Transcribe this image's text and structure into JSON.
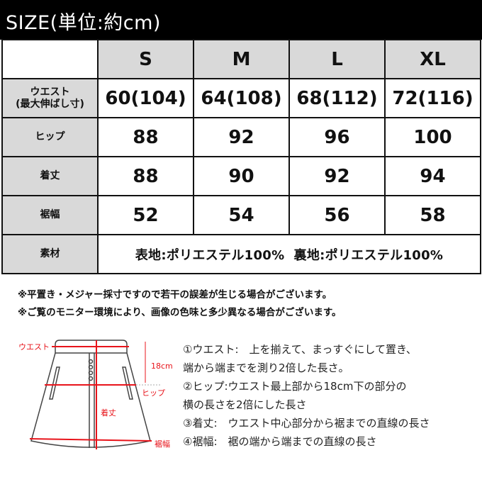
{
  "title": "SIZE(単位:約cm)",
  "table": {
    "sizes": [
      "S",
      "M",
      "L",
      "XL"
    ],
    "rows": [
      {
        "label_line1": "ウエスト",
        "label_line2": "(最大伸ばし寸)",
        "values": [
          "60(104)",
          "64(108)",
          "68(112)",
          "72(116)"
        ]
      },
      {
        "label": "ヒップ",
        "values": [
          "88",
          "92",
          "96",
          "100"
        ]
      },
      {
        "label": "着丈",
        "values": [
          "88",
          "90",
          "92",
          "94"
        ]
      },
      {
        "label": "裾幅",
        "values": [
          "52",
          "54",
          "56",
          "58"
        ]
      }
    ],
    "material": {
      "label": "素材",
      "value": "表地:ポリエステル100%  裏地:ポリエステル100%"
    }
  },
  "notes": [
    "※平置き・メジャー採寸ですので若干の誤差が生じる場合がございます。",
    "※ご覧のモニター環境により、画像の色味と多少異なる場合がございます。"
  ],
  "diagram": {
    "waist": "ウエスト",
    "hip": "ヒップ",
    "offset": "18cm",
    "length": "着丈",
    "hem": "裾幅",
    "accent": "#e8141b"
  },
  "descriptions": [
    "①ウエスト:　上を揃えて、まっすぐにして置き、",
    "端から端までを測り2倍した長さ。",
    "②ヒップ:ウエスト最上部から18cm下の部分の",
    "横の長さを2倍にした長さ",
    "③着丈:　ウエスト中心部分から裾までの直線の長さ",
    "④裾幅:　裾の端から端までの直線の長さ"
  ]
}
